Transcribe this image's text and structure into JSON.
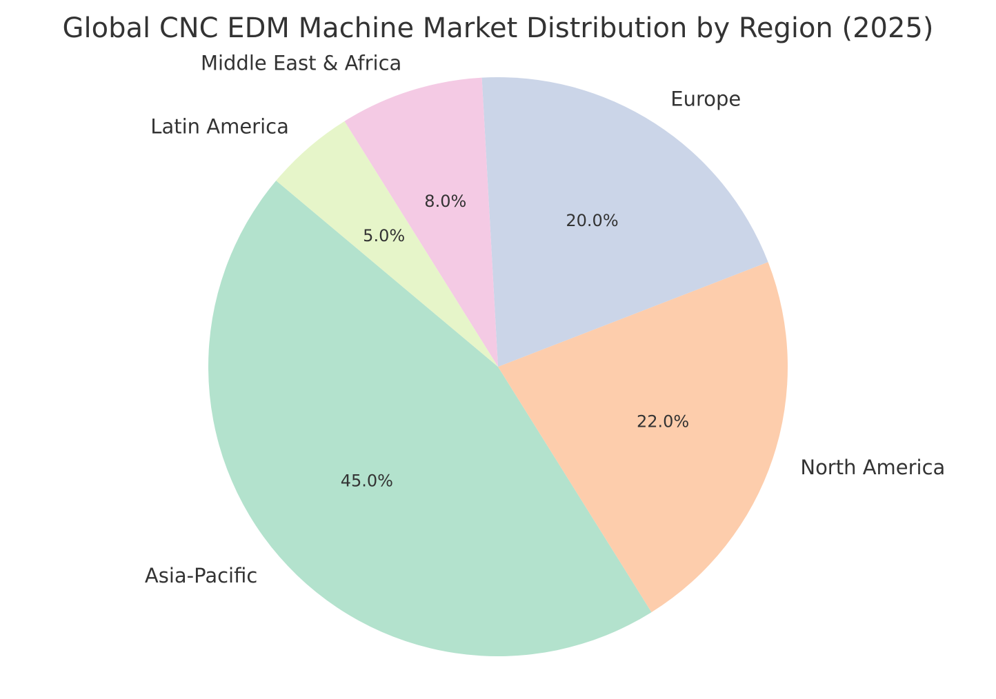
{
  "chart_data": {
    "type": "pie",
    "title": "Global CNC EDM Machine Market Distribution by Region (2025)",
    "categories": [
      "Asia-Pacific",
      "North America",
      "Europe",
      "Middle East & Africa",
      "Latin America"
    ],
    "values": [
      45.0,
      22.0,
      20.0,
      8.0,
      5.0
    ],
    "value_labels": [
      "45.0%",
      "22.0%",
      "20.0%",
      "8.0%",
      "5.0%"
    ],
    "colors": [
      "#b3e2cd",
      "#fdcdac",
      "#cbd5e8",
      "#f4cae4",
      "#e6f5c9"
    ],
    "start_angle_deg": 140,
    "direction": "counterclockwise",
    "legend": "none"
  }
}
